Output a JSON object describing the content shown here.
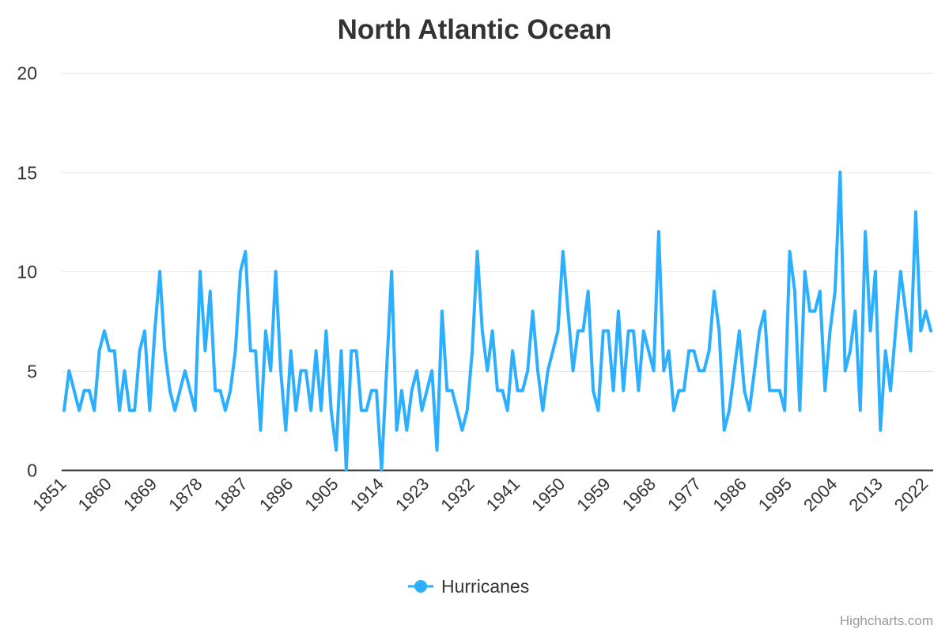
{
  "chart_data": {
    "type": "line",
    "title": "North Atlantic Ocean",
    "xlabel": "",
    "ylabel": "",
    "ylim": [
      0,
      20
    ],
    "yticks": [
      "0",
      "5",
      "10",
      "15",
      "20"
    ],
    "x_start": 1851,
    "x_end": 2023,
    "xtick_labels": [
      "1851",
      "1860",
      "1869",
      "1878",
      "1887",
      "1896",
      "1905",
      "1914",
      "1923",
      "1932",
      "1941",
      "1950",
      "1959",
      "1968",
      "1977",
      "1986",
      "1995",
      "2004",
      "2013",
      "2022"
    ],
    "grid": true,
    "legend_position": "bottom",
    "series": [
      {
        "name": "Hurricanes",
        "color": "#2caffe",
        "values": [
          3,
          5,
          4,
          3,
          4,
          4,
          3,
          6,
          7,
          6,
          6,
          3,
          5,
          3,
          3,
          6,
          7,
          3,
          7,
          10,
          6,
          4,
          3,
          4,
          5,
          4,
          3,
          10,
          6,
          9,
          4,
          4,
          3,
          4,
          6,
          10,
          11,
          6,
          6,
          2,
          7,
          5,
          10,
          5,
          2,
          6,
          3,
          5,
          5,
          3,
          6,
          3,
          7,
          3,
          1,
          6,
          0,
          6,
          6,
          3,
          3,
          4,
          4,
          0,
          5,
          10,
          2,
          4,
          2,
          4,
          5,
          3,
          4,
          5,
          1,
          8,
          4,
          4,
          3,
          2,
          3,
          6,
          11,
          7,
          5,
          7,
          4,
          4,
          3,
          6,
          4,
          4,
          5,
          8,
          5,
          3,
          5,
          6,
          7,
          11,
          8,
          5,
          7,
          7,
          9,
          4,
          3,
          7,
          7,
          4,
          8,
          4,
          7,
          7,
          4,
          7,
          6,
          5,
          12,
          5,
          6,
          3,
          4,
          4,
          6,
          6,
          5,
          5,
          6,
          9,
          7,
          2,
          3,
          5,
          7,
          4,
          3,
          5,
          7,
          8,
          4,
          4,
          4,
          3,
          11,
          9,
          3,
          10,
          8,
          8,
          9,
          4,
          7,
          9,
          15,
          5,
          6,
          8,
          3,
          12,
          7,
          10,
          2,
          6,
          4,
          7,
          10,
          8,
          6,
          13,
          7,
          8,
          7
        ]
      }
    ]
  },
  "credits": "Highcharts.com"
}
